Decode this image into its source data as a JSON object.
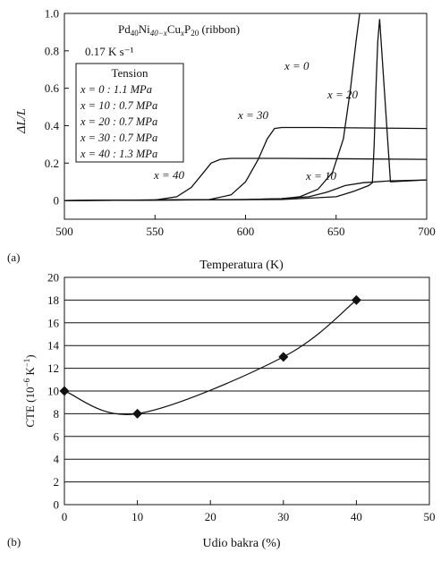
{
  "chart_data": [
    {
      "panel_label": "(a)",
      "type": "line",
      "title_line1": "Pd40Ni40−xCuxP20 (ribbon)",
      "title_parts": {
        "base1": "Pd",
        "sub1": "40",
        "base2": "Ni",
        "sub2": "40−x",
        "base3": "Cu",
        "sub3": "x",
        "base4": "P",
        "sub4": "20",
        "suffix": " (ribbon)"
      },
      "heating_rate": "0.17 K s⁻¹",
      "xlabel": "Temperatura (K)",
      "ylabel": "ΔL/L",
      "xlim": [
        500,
        700
      ],
      "ylim": [
        -0.1,
        1.0
      ],
      "xticks": [
        "500",
        "550",
        "600",
        "650",
        "700"
      ],
      "yticks": [
        "0",
        "0.2",
        "0.4",
        "0.6",
        "0.8",
        "1.0"
      ],
      "legend": {
        "title": "Tension",
        "entries": [
          "x = 0    : 1.1 MPa",
          "x = 10 : 0.7 MPa",
          "x = 20 : 0.7 MPa",
          "x = 30 : 0.7 MPa",
          "x = 40 : 1.3 MPa"
        ]
      },
      "series": [
        {
          "name": "x = 0",
          "x": [
            500,
            600,
            620,
            630,
            640,
            648,
            654,
            658,
            661,
            663
          ],
          "y": [
            0,
            0.005,
            0.01,
            0.02,
            0.06,
            0.15,
            0.33,
            0.6,
            0.85,
            1.0
          ]
        },
        {
          "name": "x = 10",
          "x": [
            500,
            600,
            620,
            635,
            645,
            655,
            665,
            680,
            700
          ],
          "y": [
            0,
            0.005,
            0.01,
            0.02,
            0.045,
            0.08,
            0.095,
            0.105,
            0.11
          ]
        },
        {
          "name": "x = 20",
          "x": [
            500,
            620,
            650,
            660,
            668,
            670,
            671,
            672,
            673,
            674,
            680,
            700
          ],
          "y": [
            0,
            0.005,
            0.02,
            0.05,
            0.08,
            0.095,
            0.3,
            0.6,
            0.85,
            0.97,
            0.1,
            0.11
          ]
        },
        {
          "name": "x = 30",
          "x": [
            500,
            580,
            592,
            600,
            607,
            612,
            616,
            620,
            640,
            700
          ],
          "y": [
            0,
            0.005,
            0.03,
            0.1,
            0.22,
            0.33,
            0.385,
            0.39,
            0.39,
            0.385
          ]
        },
        {
          "name": "x = 40",
          "x": [
            500,
            550,
            562,
            570,
            576,
            581,
            586,
            592,
            620,
            700
          ],
          "y": [
            0,
            0.003,
            0.02,
            0.07,
            0.14,
            0.2,
            0.22,
            0.225,
            0.225,
            0.22
          ]
        }
      ],
      "annotations": [
        "x = 0",
        "x = 20",
        "x = 30",
        "x = 40",
        "x = 10"
      ]
    },
    {
      "panel_label": "(b)",
      "type": "line",
      "markers": "diamond",
      "xlabel": "Udio bakra (%)",
      "ylabel": "CTE (10⁻⁶ K⁻¹)",
      "ylabel_parts": {
        "base": "CTE (10",
        "sup1": "−6",
        "mid": " K",
        "sup2": "−1",
        "end": ")"
      },
      "xlim": [
        0,
        50
      ],
      "ylim": [
        0,
        20
      ],
      "xticks": [
        "0",
        "10",
        "20",
        "30",
        "40",
        "50"
      ],
      "yticks": [
        "0",
        "2",
        "4",
        "6",
        "8",
        "10",
        "12",
        "14",
        "16",
        "18",
        "20"
      ],
      "grid": "horizontal",
      "points": {
        "x": [
          0,
          10,
          30,
          40
        ],
        "y": [
          10,
          8,
          13,
          18
        ]
      }
    }
  ]
}
